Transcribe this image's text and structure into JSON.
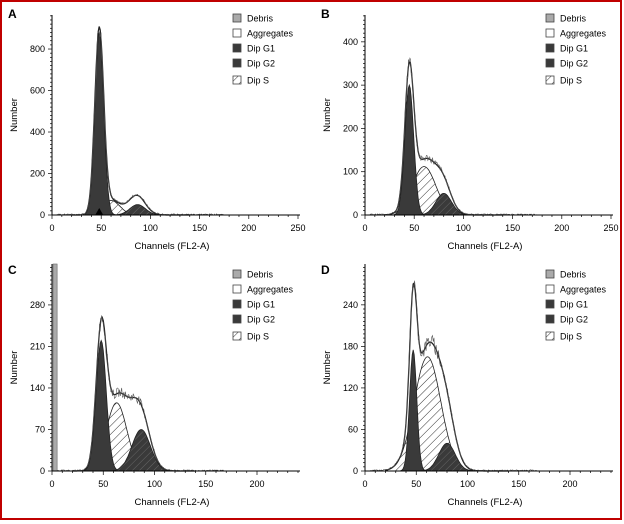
{
  "colors": {
    "border": "#c00000",
    "dark": "#3a3a3a",
    "debris": "#aaaaaa",
    "line": "#333333"
  },
  "chart_data": [
    {
      "type": "area",
      "panel": "A",
      "xlabel": "Channels (FL2-A)",
      "ylabel": "Number",
      "xlim": [
        0,
        250
      ],
      "ylim": [
        0,
        964
      ],
      "xticks": [
        0,
        50,
        100,
        150,
        200,
        250
      ],
      "yticks": [
        0,
        200,
        400,
        600,
        800
      ],
      "legend": [
        "Debris",
        "Aggregates",
        "Dip G1",
        "Dip G2",
        "Dip S"
      ],
      "legend_position": "top-right",
      "g1": {
        "mean": 48,
        "peak": 880,
        "sd": 4.5
      },
      "s": {
        "mean": 60,
        "peak": 70,
        "sd": 9
      },
      "g2": {
        "mean": 87,
        "peak": 50,
        "sd": 8
      },
      "aggregates": {
        "mean": 85,
        "peak": 45,
        "sd": 9
      },
      "marker_channel": 48,
      "debris_peak": 0
    },
    {
      "type": "area",
      "panel": "B",
      "xlabel": "Channels (FL2-A)",
      "ylabel": "Number",
      "xlim": [
        0,
        250
      ],
      "ylim": [
        0,
        462
      ],
      "xticks": [
        0,
        50,
        100,
        150,
        200,
        250
      ],
      "yticks": [
        0,
        100,
        200,
        300,
        400
      ],
      "legend": [
        "Debris",
        "Aggregates",
        "Dip G1",
        "Dip G2",
        "Dip S"
      ],
      "legend_position": "top-right",
      "g1": {
        "mean": 45,
        "peak": 300,
        "sd": 4.5
      },
      "s": {
        "mean": 60,
        "peak": 112,
        "sd": 12
      },
      "g2": {
        "mean": 80,
        "peak": 50,
        "sd": 8
      },
      "aggregates": {
        "mean": 70,
        "peak": 20,
        "sd": 12
      },
      "debris_peak": 0
    },
    {
      "type": "area",
      "panel": "C",
      "xlabel": "Channels (FL2-A)",
      "ylabel": "Number",
      "xlim": [
        0,
        240
      ],
      "ylim": [
        0,
        349
      ],
      "xticks": [
        0,
        50,
        100,
        150,
        200
      ],
      "yticks": [
        0,
        70,
        140,
        210,
        280
      ],
      "legend": [
        "Debris",
        "Aggregates",
        "Dip G1",
        "Dip G2",
        "Dip S"
      ],
      "legend_position": "top-right",
      "g1": {
        "mean": 48,
        "peak": 220,
        "sd": 5
      },
      "s": {
        "mean": 63,
        "peak": 115,
        "sd": 10
      },
      "g2": {
        "mean": 87,
        "peak": 70,
        "sd": 9
      },
      "aggregates": {
        "mean": 80,
        "peak": 45,
        "sd": 10
      },
      "debris_peak": 349
    },
    {
      "type": "area",
      "panel": "D",
      "xlabel": "Channels (FL2-A)",
      "ylabel": "Number",
      "xlim": [
        0,
        240
      ],
      "ylim": [
        0,
        299
      ],
      "xticks": [
        0,
        50,
        100,
        150,
        200
      ],
      "yticks": [
        0,
        60,
        120,
        180,
        240
      ],
      "legend": [
        "Debris",
        "Aggregates",
        "Dip G1",
        "Dip G2",
        "Dip S"
      ],
      "legend_position": "top-right",
      "g1": {
        "mean": 47,
        "peak": 175,
        "sd": 3.5
      },
      "s": {
        "mean": 61,
        "peak": 165,
        "sd": 13
      },
      "g2": {
        "mean": 80,
        "peak": 40,
        "sd": 8
      },
      "aggregates": {
        "mean": 72,
        "peak": 25,
        "sd": 12
      },
      "debris_peak": 0
    }
  ]
}
